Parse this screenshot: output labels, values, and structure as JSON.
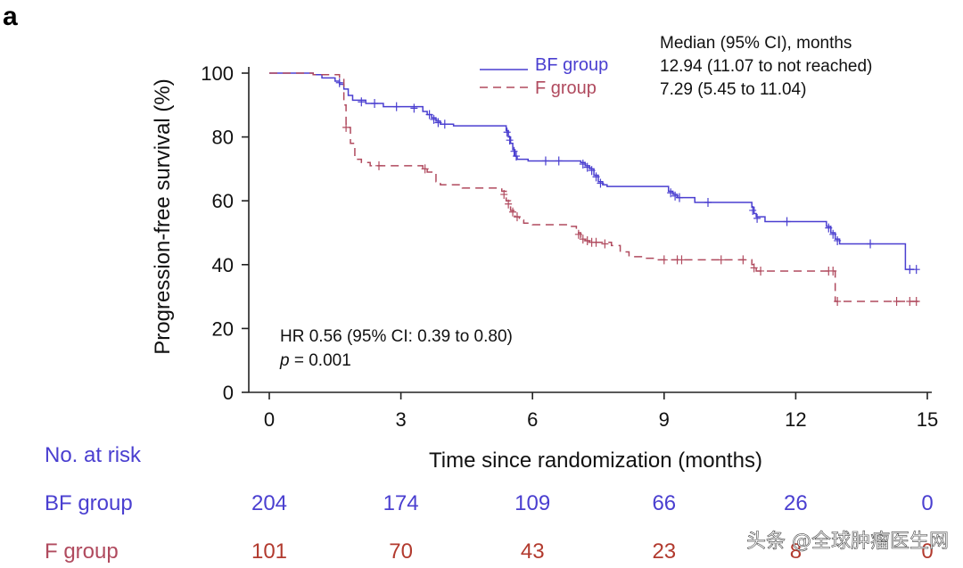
{
  "panel_label": "a",
  "colors": {
    "bf": "#4a3fd0",
    "f": "#b04a5e",
    "f_risk": "#b23a2e"
  },
  "annotations": {
    "median_header": "Median (95% CI), months",
    "bf_median": "12.94 (11.07 to not reached)",
    "f_median": "7.29 (5.45 to 11.04)",
    "hr": "HR 0.56 (95% CI: 0.39 to 0.80)",
    "p_symbol": "p",
    "p_rest": " = 0.001"
  },
  "risk_table": {
    "title": "No. at risk",
    "rows": [
      {
        "label": "BF group",
        "color_key": "bf",
        "values": [
          "204",
          "174",
          "109",
          "66",
          "26",
          "0"
        ]
      },
      {
        "label": "F group",
        "color_key": "f_risk",
        "values": [
          "101",
          "70",
          "43",
          "23",
          "8",
          "0"
        ]
      }
    ]
  },
  "watermark": "头条 @全球肿瘤医生网",
  "chart_data": {
    "type": "line",
    "xlabel": "Time since randomization (months)",
    "ylabel": "Progression-free survival (%)",
    "xlim": [
      0,
      15
    ],
    "ylim": [
      0,
      100
    ],
    "xticks": [
      "0",
      "3",
      "6",
      "9",
      "12",
      "15"
    ],
    "yticks": [
      "0",
      "20",
      "40",
      "60",
      "80",
      "100"
    ],
    "grid": false,
    "legend_position": "top-center",
    "series": [
      {
        "name": "BF group",
        "color_key": "bf",
        "dash": "solid",
        "steps": [
          [
            0,
            100
          ],
          [
            1.0,
            99.5
          ],
          [
            1.2,
            98.5
          ],
          [
            1.5,
            97.5
          ],
          [
            1.6,
            96.5
          ],
          [
            1.7,
            95
          ],
          [
            1.8,
            93
          ],
          [
            1.9,
            91.5
          ],
          [
            2.2,
            90.5
          ],
          [
            2.6,
            89.5
          ],
          [
            3.5,
            88
          ],
          [
            3.6,
            87
          ],
          [
            3.7,
            86
          ],
          [
            3.8,
            85
          ],
          [
            3.9,
            84
          ],
          [
            4.2,
            83.5
          ],
          [
            5.4,
            82
          ],
          [
            5.45,
            80
          ],
          [
            5.5,
            78
          ],
          [
            5.55,
            76
          ],
          [
            5.6,
            74
          ],
          [
            5.65,
            73
          ],
          [
            5.9,
            72.5
          ],
          [
            7.1,
            72
          ],
          [
            7.2,
            71
          ],
          [
            7.3,
            70
          ],
          [
            7.4,
            68
          ],
          [
            7.5,
            66
          ],
          [
            7.6,
            65
          ],
          [
            7.7,
            64.5
          ],
          [
            9.1,
            63
          ],
          [
            9.2,
            62
          ],
          [
            9.3,
            61
          ],
          [
            9.7,
            59.5
          ],
          [
            11.0,
            58
          ],
          [
            11.05,
            56
          ],
          [
            11.1,
            55
          ],
          [
            11.3,
            53.5
          ],
          [
            12.7,
            52
          ],
          [
            12.8,
            50
          ],
          [
            12.9,
            48
          ],
          [
            13.0,
            46.5
          ],
          [
            14.5,
            38.5
          ]
        ],
        "end": 14.7,
        "censors": [
          [
            1.6,
            97
          ],
          [
            2.1,
            91
          ],
          [
            2.4,
            90.5
          ],
          [
            2.9,
            89.5
          ],
          [
            3.3,
            89
          ],
          [
            3.65,
            87
          ],
          [
            3.75,
            85.5
          ],
          [
            3.85,
            84.5
          ],
          [
            4.0,
            84
          ],
          [
            5.42,
            81.5
          ],
          [
            5.48,
            79
          ],
          [
            5.58,
            75.5
          ],
          [
            5.63,
            74
          ],
          [
            6.3,
            72.5
          ],
          [
            6.6,
            72.5
          ],
          [
            7.15,
            71.5
          ],
          [
            7.25,
            70.5
          ],
          [
            7.35,
            69.5
          ],
          [
            7.45,
            67.5
          ],
          [
            7.55,
            65.5
          ],
          [
            9.15,
            62.5
          ],
          [
            9.25,
            61.5
          ],
          [
            9.35,
            61
          ],
          [
            10.0,
            59.5
          ],
          [
            11.02,
            57
          ],
          [
            11.12,
            54.5
          ],
          [
            11.8,
            53.5
          ],
          [
            12.75,
            51.5
          ],
          [
            12.85,
            49.5
          ],
          [
            12.95,
            47.5
          ],
          [
            13.7,
            46.5
          ],
          [
            14.6,
            38.5
          ],
          [
            14.75,
            38.5
          ]
        ]
      },
      {
        "name": "F group",
        "color_key": "f",
        "dash": "dashed",
        "steps": [
          [
            0,
            100
          ],
          [
            1.0,
            99.5
          ],
          [
            1.6,
            98.5
          ],
          [
            1.7,
            90
          ],
          [
            1.75,
            83
          ],
          [
            1.85,
            78
          ],
          [
            1.95,
            73
          ],
          [
            2.1,
            72
          ],
          [
            2.3,
            71
          ],
          [
            3.5,
            70
          ],
          [
            3.6,
            69
          ],
          [
            3.8,
            66
          ],
          [
            3.9,
            65
          ],
          [
            4.4,
            64
          ],
          [
            5.3,
            63
          ],
          [
            5.4,
            60
          ],
          [
            5.5,
            57
          ],
          [
            5.6,
            55
          ],
          [
            5.7,
            54
          ],
          [
            5.8,
            53
          ],
          [
            6.0,
            52.5
          ],
          [
            6.8,
            52
          ],
          [
            7.0,
            50
          ],
          [
            7.1,
            48.5
          ],
          [
            7.2,
            47.5
          ],
          [
            7.3,
            47
          ],
          [
            7.8,
            46
          ],
          [
            8.0,
            44
          ],
          [
            8.2,
            42.5
          ],
          [
            8.5,
            42
          ],
          [
            8.8,
            41.5
          ],
          [
            11.0,
            40
          ],
          [
            11.1,
            38
          ],
          [
            12.8,
            38
          ],
          [
            12.9,
            28.5
          ]
        ],
        "end": 14.8,
        "censors": [
          [
            1.75,
            83
          ],
          [
            2.5,
            71
          ],
          [
            3.55,
            70
          ],
          [
            5.35,
            62
          ],
          [
            5.45,
            59
          ],
          [
            5.55,
            56.5
          ],
          [
            5.65,
            55
          ],
          [
            7.05,
            49.5
          ],
          [
            7.15,
            48
          ],
          [
            7.25,
            47.5
          ],
          [
            7.35,
            47
          ],
          [
            7.45,
            47
          ],
          [
            7.65,
            46.5
          ],
          [
            9.0,
            41.5
          ],
          [
            9.3,
            41.5
          ],
          [
            9.4,
            41.5
          ],
          [
            10.3,
            41.5
          ],
          [
            10.8,
            41.5
          ],
          [
            11.05,
            39
          ],
          [
            11.2,
            38
          ],
          [
            12.75,
            38
          ],
          [
            12.85,
            38
          ],
          [
            12.95,
            28.5
          ],
          [
            14.3,
            28.5
          ],
          [
            14.6,
            28.5
          ],
          [
            14.75,
            28.5
          ]
        ]
      }
    ]
  }
}
